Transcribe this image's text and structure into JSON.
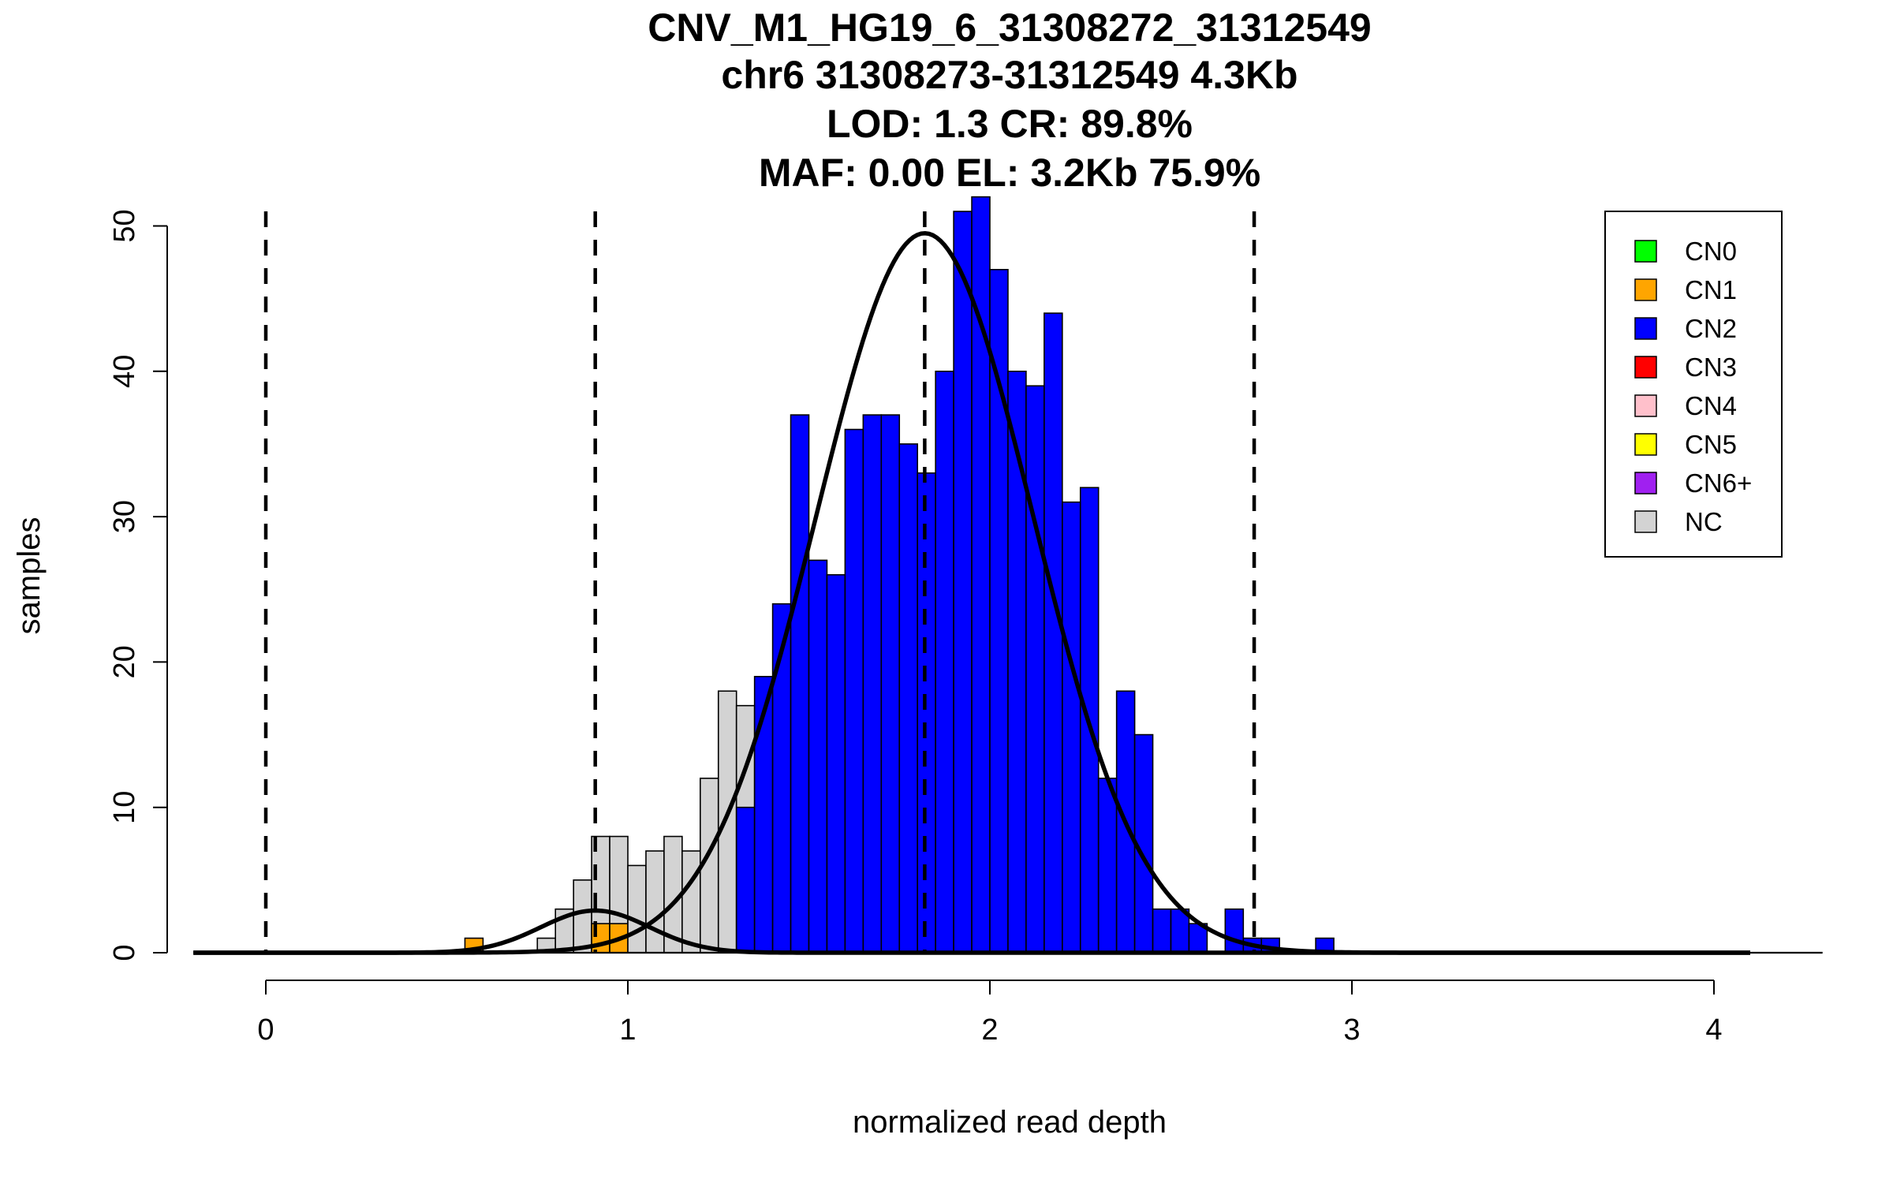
{
  "chart_data": {
    "type": "bar",
    "title_lines": [
      "CNV_M1_HG19_6_31308272_31312549",
      "chr6 31308273-31312549 4.3Kb",
      "LOD: 1.3 CR: 89.8%",
      "MAF: 0.00 EL: 3.2Kb 75.9%"
    ],
    "xlabel": "normalized read depth",
    "ylabel": "samples",
    "xlim": [
      -0.2,
      4.3
    ],
    "ylim": [
      0,
      52
    ],
    "x_ticks": [
      {
        "value": 0,
        "label": "0"
      },
      {
        "value": 1,
        "label": "1"
      },
      {
        "value": 2,
        "label": "2"
      },
      {
        "value": 3,
        "label": "3"
      },
      {
        "value": 4,
        "label": "4"
      }
    ],
    "y_ticks": [
      {
        "value": 0,
        "label": "0"
      },
      {
        "value": 10,
        "label": "10"
      },
      {
        "value": 20,
        "label": "20"
      },
      {
        "value": 30,
        "label": "30"
      },
      {
        "value": 40,
        "label": "40"
      },
      {
        "value": 50,
        "label": "50"
      }
    ],
    "bin_width": 0.05,
    "bins": [
      {
        "x0": 0.55,
        "count": 1,
        "class": "CN1"
      },
      {
        "x0": 0.75,
        "count": 1,
        "class": "NC"
      },
      {
        "x0": 0.8,
        "count": 3,
        "class": "NC"
      },
      {
        "x0": 0.85,
        "count": 5,
        "class": "NC"
      },
      {
        "x0": 0.9,
        "count": 8,
        "class": "NC"
      },
      {
        "x0": 0.9,
        "count": 2,
        "class": "CN1"
      },
      {
        "x0": 0.95,
        "count": 8,
        "class": "NC"
      },
      {
        "x0": 0.95,
        "count": 2,
        "class": "CN1"
      },
      {
        "x0": 1.0,
        "count": 6,
        "class": "NC"
      },
      {
        "x0": 1.05,
        "count": 7,
        "class": "NC"
      },
      {
        "x0": 1.1,
        "count": 8,
        "class": "NC"
      },
      {
        "x0": 1.15,
        "count": 7,
        "class": "NC"
      },
      {
        "x0": 1.2,
        "count": 12,
        "class": "NC"
      },
      {
        "x0": 1.25,
        "count": 18,
        "class": "NC"
      },
      {
        "x0": 1.3,
        "count": 17,
        "class": "NC"
      },
      {
        "x0": 1.3,
        "count": 10,
        "class": "CN2"
      },
      {
        "x0": 1.35,
        "count": 19,
        "class": "CN2"
      },
      {
        "x0": 1.4,
        "count": 24,
        "class": "CN2"
      },
      {
        "x0": 1.45,
        "count": 37,
        "class": "CN2"
      },
      {
        "x0": 1.5,
        "count": 27,
        "class": "CN2"
      },
      {
        "x0": 1.55,
        "count": 26,
        "class": "CN2"
      },
      {
        "x0": 1.6,
        "count": 36,
        "class": "CN2"
      },
      {
        "x0": 1.65,
        "count": 37,
        "class": "CN2"
      },
      {
        "x0": 1.7,
        "count": 37,
        "class": "CN2"
      },
      {
        "x0": 1.75,
        "count": 35,
        "class": "CN2"
      },
      {
        "x0": 1.8,
        "count": 33,
        "class": "CN2"
      },
      {
        "x0": 1.85,
        "count": 40,
        "class": "CN2"
      },
      {
        "x0": 1.9,
        "count": 51,
        "class": "CN2"
      },
      {
        "x0": 1.95,
        "count": 52,
        "class": "CN2"
      },
      {
        "x0": 2.0,
        "count": 47,
        "class": "CN2"
      },
      {
        "x0": 2.05,
        "count": 40,
        "class": "CN2"
      },
      {
        "x0": 2.1,
        "count": 39,
        "class": "CN2"
      },
      {
        "x0": 2.15,
        "count": 44,
        "class": "CN2"
      },
      {
        "x0": 2.2,
        "count": 31,
        "class": "CN2"
      },
      {
        "x0": 2.25,
        "count": 32,
        "class": "CN2"
      },
      {
        "x0": 2.3,
        "count": 12,
        "class": "CN2"
      },
      {
        "x0": 2.35,
        "count": 18,
        "class": "CN2"
      },
      {
        "x0": 2.4,
        "count": 15,
        "class": "CN2"
      },
      {
        "x0": 2.45,
        "count": 3,
        "class": "CN2"
      },
      {
        "x0": 2.5,
        "count": 3,
        "class": "CN2"
      },
      {
        "x0": 2.55,
        "count": 2,
        "class": "CN2"
      },
      {
        "x0": 2.65,
        "count": 3,
        "class": "CN2"
      },
      {
        "x0": 2.7,
        "count": 1,
        "class": "CN2"
      },
      {
        "x0": 2.75,
        "count": 1,
        "class": "CN2"
      },
      {
        "x0": 2.9,
        "count": 1,
        "class": "CN2"
      }
    ],
    "curves": [
      {
        "mean": 1.82,
        "sd": 0.3,
        "peak": 49.5
      },
      {
        "mean": 0.91,
        "sd": 0.15,
        "peak": 2.9
      }
    ],
    "curve_range": [
      -0.2,
      4.1
    ],
    "vlines": [
      0,
      0.91,
      1.82,
      2.73
    ],
    "colors": {
      "CN0": "#00ff00",
      "CN1": "#ffa500",
      "CN2": "#0000ff",
      "CN3": "#ff0000",
      "CN4": "#ffc0cb",
      "CN5": "#ffff00",
      "CN6+": "#a020f0",
      "NC": "#d3d3d3"
    },
    "legend": {
      "position": "top-right",
      "entries": [
        {
          "key": "CN0",
          "label": "CN0"
        },
        {
          "key": "CN1",
          "label": "CN1"
        },
        {
          "key": "CN2",
          "label": "CN2"
        },
        {
          "key": "CN3",
          "label": "CN3"
        },
        {
          "key": "CN4",
          "label": "CN4"
        },
        {
          "key": "CN5",
          "label": "CN5"
        },
        {
          "key": "CN6+",
          "label": "CN6+"
        },
        {
          "key": "NC",
          "label": "NC"
        }
      ]
    },
    "grid": false
  }
}
